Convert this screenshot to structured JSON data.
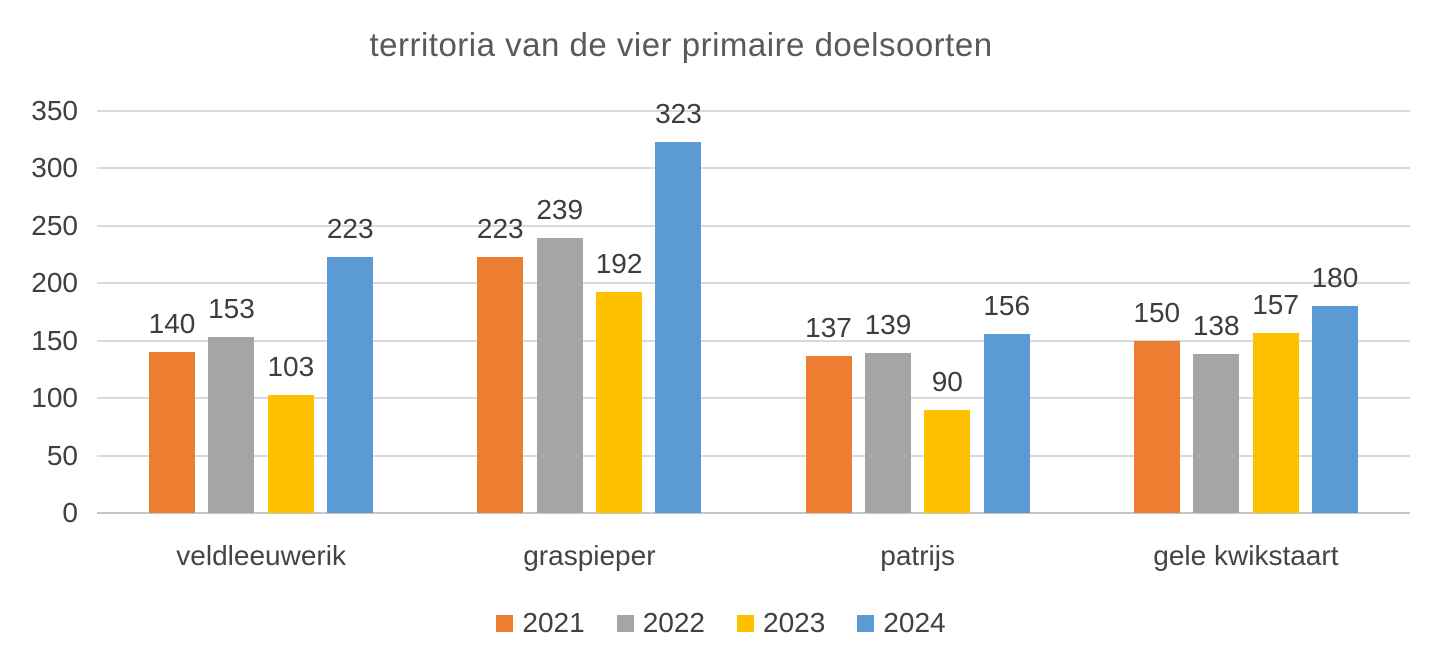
{
  "chart_data": {
    "type": "bar",
    "title": "territoria van de vier primaire doelsoorten",
    "categories": [
      "veldleeuwerik",
      "graspieper",
      "patrijs",
      "gele kwikstaart"
    ],
    "series": [
      {
        "name": "2021",
        "color": "#ED7D31",
        "values": [
          140,
          223,
          137,
          150
        ]
      },
      {
        "name": "2022",
        "color": "#A5A5A5",
        "values": [
          153,
          239,
          139,
          138
        ]
      },
      {
        "name": "2023",
        "color": "#FFC000",
        "values": [
          103,
          192,
          90,
          157
        ]
      },
      {
        "name": "2024",
        "color": "#5B9BD5",
        "values": [
          223,
          323,
          156,
          180
        ]
      }
    ],
    "ylim": [
      0,
      350
    ],
    "yticks": [
      0,
      50,
      100,
      150,
      200,
      250,
      300,
      350
    ],
    "xlabel": "",
    "ylabel": "",
    "grid": true,
    "gridline_color": "#d9d9d9",
    "legend_position": "bottom",
    "text_color": "#404040",
    "title_color": "#595959"
  }
}
